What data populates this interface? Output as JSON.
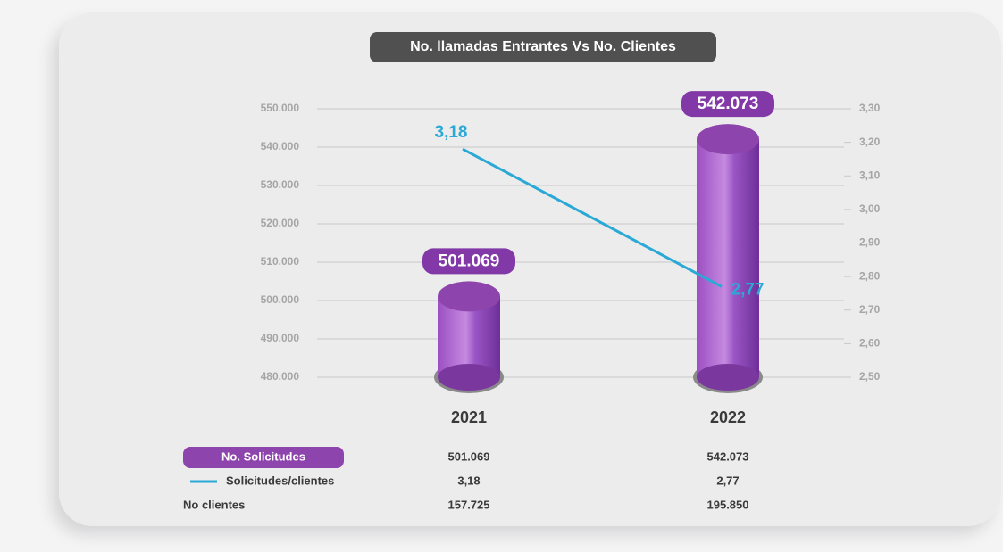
{
  "chart_data": {
    "type": "bar",
    "title": "No. llamadas Entrantes Vs No. Clientes",
    "categories": [
      "2021",
      "2022"
    ],
    "series": [
      {
        "name": "No. Solicitudes",
        "color": "#8e44ad",
        "values": [
          501069,
          542073
        ],
        "value_labels": [
          "501.069",
          "542.073"
        ]
      },
      {
        "name": "Solicitudes/clientes",
        "color": "#2aa9d6",
        "axis": "y2",
        "type": "line",
        "values": [
          3.18,
          2.77
        ],
        "value_labels": [
          "3,18",
          "2,77"
        ]
      }
    ],
    "ylim": [
      480000,
      550000
    ],
    "yticks": [
      {
        "value": 480000,
        "label": "480.000"
      },
      {
        "value": 490000,
        "label": "490.000"
      },
      {
        "value": 500000,
        "label": "500.000"
      },
      {
        "value": 510000,
        "label": "510.000"
      },
      {
        "value": 520000,
        "label": "520.000"
      },
      {
        "value": 530000,
        "label": "530.000"
      },
      {
        "value": 540000,
        "label": "540.000"
      },
      {
        "value": 550000,
        "label": "550.000"
      }
    ],
    "y2lim": [
      2.5,
      3.3
    ],
    "y2ticks": [
      {
        "value": 2.5,
        "label": "2,50"
      },
      {
        "value": 2.6,
        "label": "2,60"
      },
      {
        "value": 2.7,
        "label": "2,70"
      },
      {
        "value": 2.8,
        "label": "2,80"
      },
      {
        "value": 2.9,
        "label": "2,90"
      },
      {
        "value": 3.0,
        "label": "3,00"
      },
      {
        "value": 3.1,
        "label": "3,10"
      },
      {
        "value": 3.2,
        "label": "3,20"
      },
      {
        "value": 3.3,
        "label": "3,30"
      }
    ],
    "grid": true,
    "table": {
      "label": "No clientes",
      "values": [
        157725,
        195850
      ],
      "value_labels": [
        "157.725",
        "195.850"
      ]
    }
  }
}
